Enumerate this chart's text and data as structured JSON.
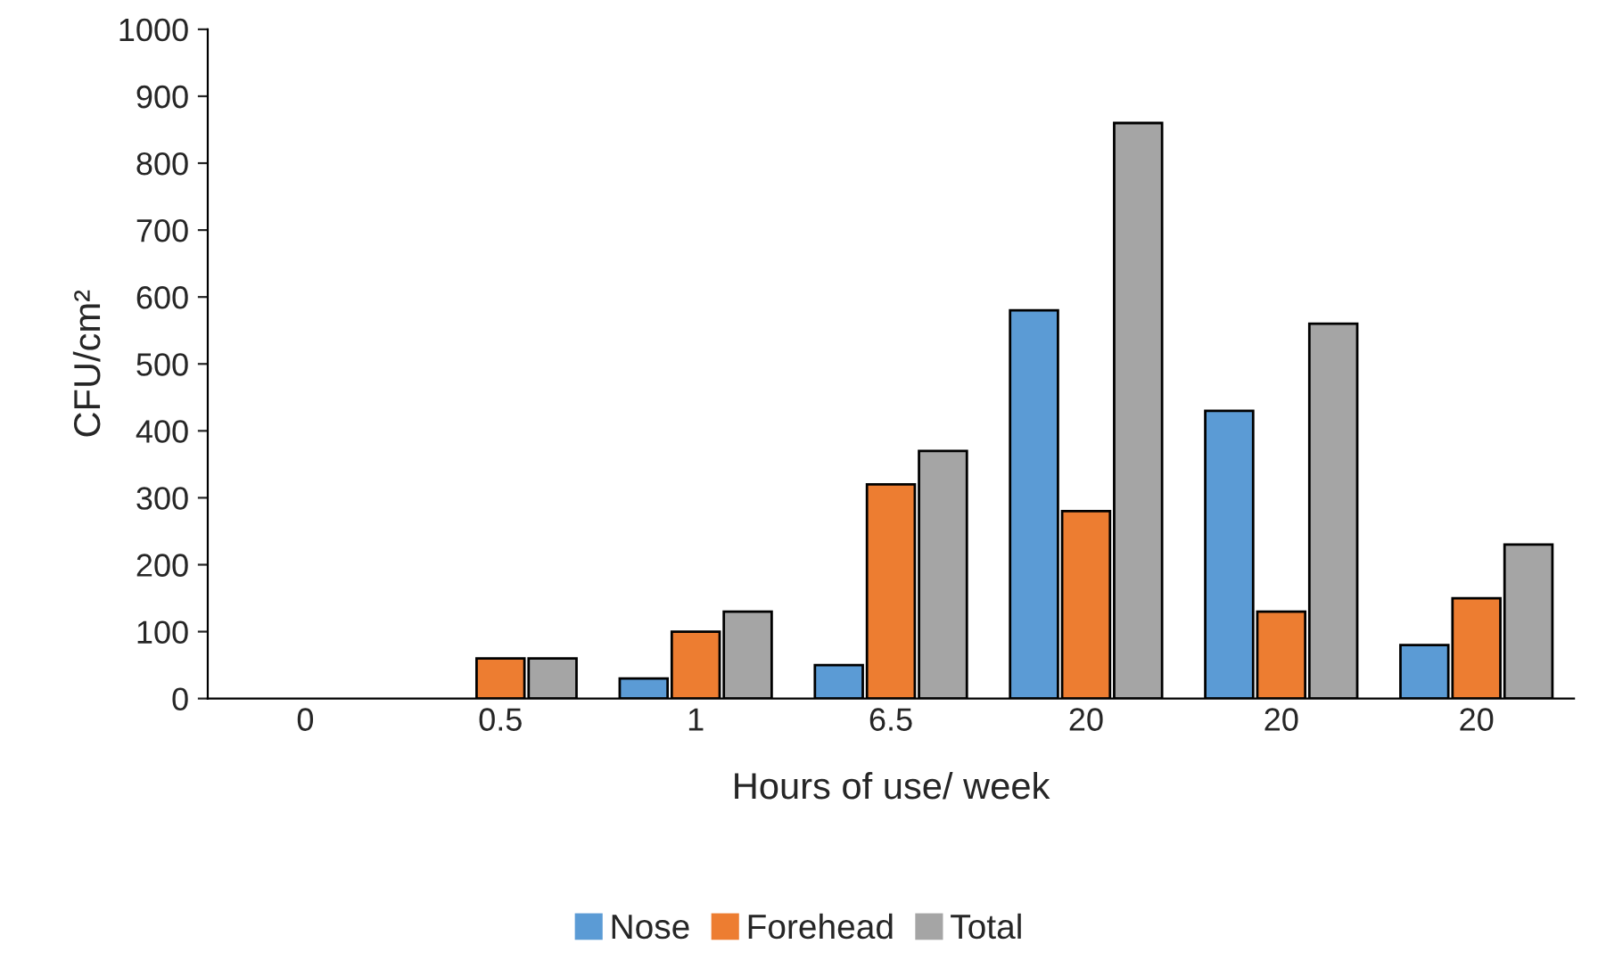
{
  "chart_data": {
    "type": "bar",
    "xlabel": "Hours of use/ week",
    "ylabel": "CFU/cm²",
    "categories": [
      "0",
      "0.5",
      "1",
      "6.5",
      "20",
      "20",
      "20"
    ],
    "series": [
      {
        "name": "Nose",
        "color": "#5b9bd5",
        "values": [
          0,
          0,
          30,
          50,
          580,
          430,
          80
        ]
      },
      {
        "name": "Forehead",
        "color": "#ed7d31",
        "values": [
          0,
          60,
          100,
          320,
          280,
          130,
          150
        ]
      },
      {
        "name": "Total",
        "color": "#a5a5a5",
        "values": [
          0,
          60,
          130,
          370,
          860,
          560,
          230
        ]
      }
    ],
    "ylim": [
      0,
      1000
    ],
    "yticks": [
      0,
      100,
      200,
      300,
      400,
      500,
      600,
      700,
      800,
      900,
      1000
    ],
    "grid": false,
    "legend": "bottom"
  }
}
